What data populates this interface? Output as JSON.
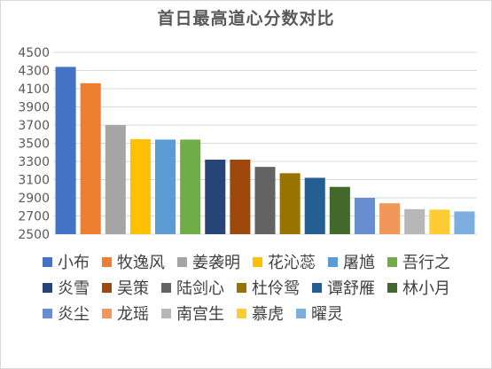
{
  "chart_data": {
    "type": "bar",
    "title": "首日最高道心分数对比",
    "xlabel": "",
    "ylabel": "",
    "ylim": [
      2500,
      4500
    ],
    "yticks": [
      2500,
      2700,
      2900,
      3100,
      3300,
      3500,
      3700,
      3900,
      4100,
      4300,
      4500
    ],
    "grid": true,
    "legend_position": "bottom",
    "categories": [
      "小布",
      "牧逸风",
      "姜袭明",
      "花沁蕊",
      "屠馗",
      "吾行之",
      "炎雪",
      "吴策",
      "陆剑心",
      "杜伶鸳",
      "谭舒雁",
      "林小月",
      "炎尘",
      "龙瑶",
      "南宫生",
      "慕虎",
      "曜灵"
    ],
    "values": [
      4340,
      4160,
      3700,
      3545,
      3540,
      3540,
      3320,
      3320,
      3240,
      3170,
      3120,
      3020,
      2900,
      2840,
      2775,
      2770,
      2750
    ],
    "colors": [
      "#4472c4",
      "#ed7d31",
      "#a5a5a5",
      "#ffc000",
      "#5b9bd5",
      "#70ad47",
      "#264478",
      "#9e480e",
      "#636363",
      "#997300",
      "#255e91",
      "#43682b",
      "#698ed0",
      "#f1975a",
      "#b7b7b7",
      "#ffcd33",
      "#7cafdd"
    ]
  }
}
